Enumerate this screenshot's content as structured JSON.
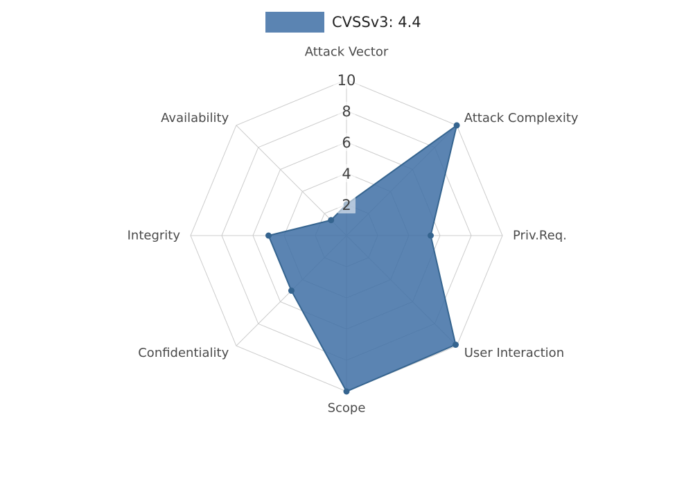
{
  "legend": {
    "label": "CVSSv3: 4.4"
  },
  "chart_data": {
    "type": "radar",
    "title": "CVSSv3: 4.4",
    "categories": [
      "Attack Vector",
      "Attack Complexity",
      "Priv.Req.",
      "User Interaction",
      "Scope",
      "Confidentiality",
      "Integrity",
      "Availability"
    ],
    "series": [
      {
        "name": "CVSSv3: 4.4",
        "values": [
          2,
          10,
          5.4,
          9.9,
          10,
          5,
          5,
          1.4
        ]
      }
    ],
    "scale_ticks": [
      2,
      4,
      6,
      8,
      10
    ],
    "rmax": 10,
    "grid": true,
    "legend_position": "top",
    "colors": {
      "fill": "#3e6fa5",
      "fill_opacity": 0.85,
      "stroke": "#35648f",
      "point": "#35648f",
      "grid": "#cccccc",
      "axis_label": "#4a4a4a",
      "scale_label": "#3f3f3f",
      "legend_text": "#222222",
      "scale_box": "#ffffff"
    }
  }
}
